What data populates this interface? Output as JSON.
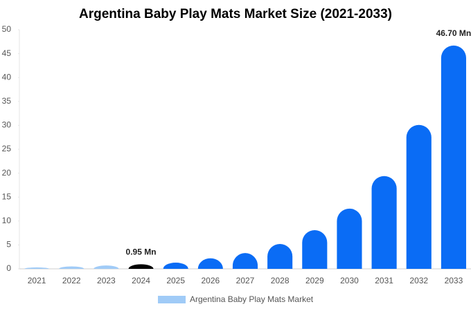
{
  "chart_data": {
    "type": "bar",
    "title": "Argentina Baby Play Mats Market Size (2021-2033)",
    "categories": [
      "2021",
      "2022",
      "2023",
      "2024",
      "2025",
      "2026",
      "2027",
      "2028",
      "2029",
      "2030",
      "2031",
      "2032",
      "2033"
    ],
    "series": [
      {
        "name": "Argentina Baby Play Mats Market",
        "color": "#a0cbf7",
        "values": [
          0.3,
          0.5,
          0.7,
          0.95,
          1.3,
          2.2,
          3.3,
          5.2,
          8.1,
          12.6,
          19.4,
          30.1,
          46.7
        ],
        "value_labels": [
          null,
          null,
          null,
          "0.95 Mn",
          null,
          null,
          null,
          null,
          null,
          null,
          null,
          null,
          "46.70 Mn"
        ],
        "colors": [
          "#a0cbf7",
          "#a0cbf7",
          "#a0cbf7",
          "#000000",
          "#0a6cf5",
          "#0a6cf5",
          "#0a6cf5",
          "#0a6cf5",
          "#0a6cf5",
          "#0a6cf5",
          "#0a6cf5",
          "#0a6cf5",
          "#0a6cf5"
        ]
      }
    ],
    "ylim": [
      0,
      50
    ],
    "yticks": [
      0,
      5,
      10,
      15,
      20,
      25,
      30,
      35,
      40,
      45,
      50
    ],
    "legend": "bottom"
  }
}
